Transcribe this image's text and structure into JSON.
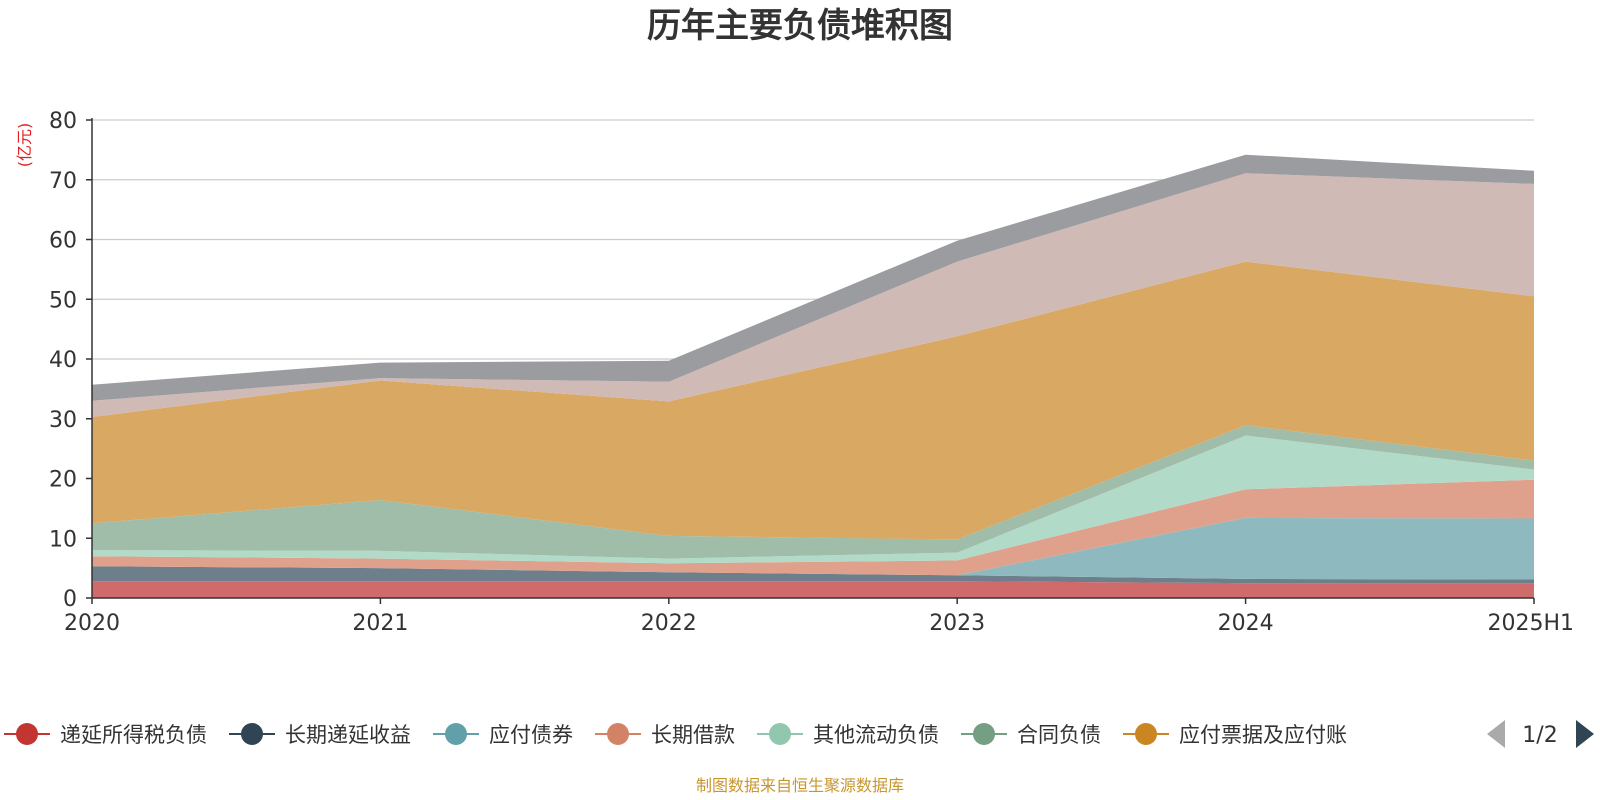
{
  "chart_data": {
    "type": "area",
    "title": "历年主要负债堆积图",
    "ylabel": "(亿元)",
    "categories": [
      "2020",
      "2021",
      "2022",
      "2023",
      "2024",
      "2025H1"
    ],
    "ylim": [
      0,
      80
    ],
    "yticks": [
      0,
      10,
      20,
      30,
      40,
      50,
      60,
      70,
      80
    ],
    "grid": true,
    "stacked": true,
    "legend_position": "bottom",
    "legend_page": "1/2",
    "series": [
      {
        "name": "递延所得税负债",
        "color": "#d06b6c",
        "legend_color": "#c23531",
        "values": [
          2.8,
          2.8,
          2.8,
          2.8,
          2.5,
          2.5
        ]
      },
      {
        "name": "长期递延收益",
        "color": "#6e7f8c",
        "legend_color": "#2f4554",
        "values": [
          2.5,
          2.2,
          1.5,
          1.0,
          0.7,
          0.6
        ]
      },
      {
        "name": "应付债券",
        "color": "#8db9bf",
        "legend_color": "#61a0a8",
        "values": [
          0,
          0,
          0,
          0,
          10.2,
          10.2
        ]
      },
      {
        "name": "长期借款",
        "color": "#e0a18c",
        "legend_color": "#d48265",
        "values": [
          1.7,
          1.6,
          1.5,
          2.5,
          4.8,
          6.5
        ]
      },
      {
        "name": "其他流动负债",
        "color": "#b2dac8",
        "legend_color": "#91c7ae",
        "values": [
          1.0,
          1.3,
          0.8,
          1.3,
          9.0,
          1.7
        ]
      },
      {
        "name": "合同负债",
        "color": "#9fbda8",
        "legend_color": "#749f83",
        "values": [
          4.5,
          8.5,
          3.8,
          2.2,
          1.7,
          1.5
        ]
      },
      {
        "name": "应付票据及应付账",
        "color": "#d9a862",
        "legend_color": "#ca8622",
        "values": [
          17.8,
          20.0,
          22.5,
          34.0,
          27.4,
          27.5
        ]
      },
      {
        "name": "",
        "color": "#d0bab5",
        "legend_color": "#bda29a",
        "values": [
          2.7,
          0.4,
          3.3,
          12.5,
          14.8,
          18.8
        ]
      },
      {
        "name": "",
        "color": "#9b9ca0",
        "legend_color": "#6e7074",
        "values": [
          2.7,
          2.6,
          3.5,
          3.5,
          3.1,
          2.2
        ]
      }
    ]
  },
  "source_note": "制图数据来自恒生聚源数据库"
}
